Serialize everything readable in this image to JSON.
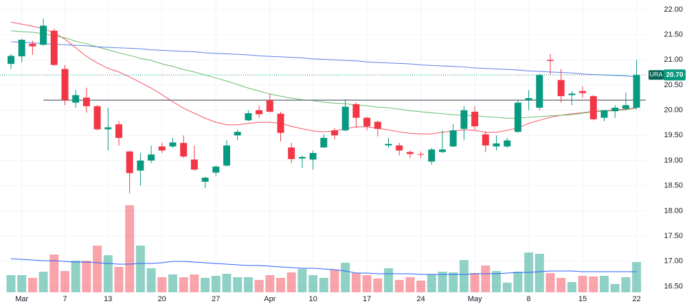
{
  "chart_data": {
    "type": "candlestick",
    "categories": [
      null,
      "Mar",
      null,
      null,
      null,
      "7",
      null,
      null,
      null,
      "13",
      null,
      null,
      null,
      null,
      "20",
      null,
      null,
      null,
      null,
      "27",
      null,
      null,
      null,
      null,
      "Apr",
      null,
      null,
      null,
      "10",
      null,
      null,
      null,
      null,
      "17",
      null,
      null,
      null,
      null,
      "24",
      null,
      null,
      null,
      null,
      "May",
      null,
      null,
      null,
      null,
      "8",
      null,
      null,
      null,
      null,
      "15",
      null,
      null,
      null,
      null,
      "22"
    ],
    "open": [
      20.92,
      21.07,
      21.32,
      21.3,
      21.58,
      20.82,
      20.15,
      20.25,
      20.08,
      19.62,
      19.72,
      19.18,
      18.8,
      19.0,
      19.28,
      19.28,
      19.35,
      19.02,
      18.58,
      18.76,
      18.9,
      19.5,
      19.8,
      20.0,
      20.2,
      19.93,
      19.26,
      19.04,
      19.02,
      19.26,
      19.6,
      19.6,
      20.12,
      19.85,
      19.77,
      19.3,
      19.3,
      19.17,
      19.13,
      18.98,
      19.17,
      19.28,
      19.63,
      19.97,
      19.52,
      19.28,
      19.28,
      19.57,
      20.2,
      20.05,
      21.0,
      20.6,
      20.3,
      20.38,
      20.28,
      19.85,
      19.98,
      20.03,
      20.05
    ],
    "high": [
      21.12,
      21.42,
      21.38,
      21.82,
      21.62,
      20.9,
      20.4,
      20.45,
      20.1,
      20.05,
      19.78,
      19.2,
      19.15,
      19.3,
      19.35,
      19.45,
      19.5,
      19.3,
      18.68,
      18.9,
      19.4,
      19.62,
      20.0,
      20.1,
      20.33,
      19.97,
      19.35,
      19.1,
      19.2,
      19.52,
      19.65,
      20.22,
      20.15,
      19.87,
      19.8,
      19.45,
      19.35,
      19.2,
      19.18,
      19.25,
      19.6,
      19.72,
      20.08,
      20.08,
      19.58,
      19.5,
      19.45,
      20.2,
      20.4,
      20.72,
      21.12,
      20.82,
      20.38,
      20.47,
      20.3,
      20.0,
      20.1,
      20.35,
      21.0
    ],
    "low": [
      20.82,
      20.95,
      21.1,
      21.28,
      20.88,
      20.1,
      20.05,
      19.95,
      19.6,
      19.2,
      19.3,
      18.35,
      18.5,
      18.95,
      19.15,
      19.25,
      19.05,
      18.8,
      18.45,
      18.7,
      18.88,
      19.4,
      19.78,
      19.85,
      19.95,
      19.38,
      18.95,
      18.85,
      18.82,
      19.25,
      19.42,
      19.58,
      19.65,
      19.6,
      19.48,
      19.25,
      19.1,
      19.05,
      19.05,
      18.92,
      19.15,
      19.27,
      19.4,
      19.6,
      19.17,
      19.2,
      19.25,
      19.55,
      20.0,
      20.0,
      20.7,
      20.15,
      20.1,
      20.25,
      19.8,
      19.78,
      19.85,
      20.0,
      20.02
    ],
    "close": [
      21.08,
      21.4,
      21.27,
      21.68,
      20.9,
      20.2,
      20.3,
      20.08,
      19.62,
      19.66,
      19.45,
      18.75,
      19.0,
      19.12,
      19.2,
      19.36,
      19.08,
      18.82,
      18.66,
      18.88,
      19.3,
      19.57,
      19.94,
      19.92,
      19.97,
      19.55,
      19.03,
      19.07,
      19.15,
      19.45,
      19.5,
      20.07,
      19.85,
      19.68,
      19.63,
      19.33,
      19.2,
      19.13,
      19.12,
      19.22,
      19.22,
      19.6,
      20.0,
      19.68,
      19.3,
      19.34,
      19.4,
      20.15,
      20.24,
      20.7,
      20.98,
      20.28,
      20.33,
      20.34,
      19.82,
      20.0,
      20.05,
      20.1,
      20.7
    ],
    "up_color": "#089981",
    "down_color": "#f23645",
    "ylim": [
      16.11,
      22.19
    ],
    "yticks": [
      {
        "value": 22,
        "label": "22.00"
      },
      {
        "value": 21.5,
        "label": "21.50"
      },
      {
        "value": 21,
        "label": "21.00"
      },
      {
        "value": 20.5,
        "label": "20.50"
      },
      {
        "value": 20,
        "label": "20.00"
      },
      {
        "value": 19.5,
        "label": "19.50"
      },
      {
        "value": 19,
        "label": "19.00"
      },
      {
        "value": 18.5,
        "label": "18.50"
      },
      {
        "value": 18,
        "label": "18.00"
      },
      {
        "value": 17.5,
        "label": "17.50"
      },
      {
        "value": 17,
        "label": "17.00"
      },
      {
        "value": 16.5,
        "label": "16.50"
      }
    ],
    "grid": true,
    "moving_averages": [
      {
        "color": "#f7525f",
        "values": [
          21.75,
          21.71,
          21.67,
          21.62,
          21.54,
          21.41,
          21.24,
          21.07,
          20.94,
          20.83,
          20.76,
          20.66,
          20.55,
          20.44,
          20.31,
          20.17,
          20.04,
          19.94,
          19.84,
          19.76,
          19.71,
          19.71,
          19.74,
          19.76,
          19.76,
          19.74,
          19.68,
          19.63,
          19.59,
          19.57,
          19.59,
          19.63,
          19.67,
          19.67,
          19.64,
          19.61,
          19.57,
          19.54,
          19.53,
          19.53,
          19.56,
          19.59,
          19.61,
          19.6,
          19.56,
          19.56,
          19.6,
          19.65,
          19.74,
          19.8,
          19.86,
          19.9,
          19.93,
          19.95,
          19.98,
          19.99,
          20.01,
          20.02,
          20.05
        ]
      },
      {
        "color": "#66bb6a",
        "values": [
          21.58,
          21.56,
          21.55,
          21.52,
          21.48,
          21.44,
          21.37,
          21.32,
          21.26,
          21.2,
          21.14,
          21.09,
          21.03,
          20.99,
          20.92,
          20.87,
          20.81,
          20.76,
          20.7,
          20.64,
          20.58,
          20.51,
          20.44,
          20.38,
          20.32,
          20.28,
          20.24,
          20.21,
          20.19,
          20.16,
          20.14,
          20.13,
          20.1,
          20.09,
          20.06,
          20.05,
          20.02,
          19.99,
          19.97,
          19.95,
          19.93,
          19.91,
          19.9,
          19.89,
          19.87,
          19.86,
          19.84,
          19.84,
          19.86,
          19.87,
          19.89,
          19.9,
          19.91,
          19.94,
          19.97,
          19.98,
          19.99,
          20.01,
          20.04
        ]
      },
      {
        "color": "#5b7ee5",
        "values": [
          21.36,
          21.35,
          21.34,
          21.32,
          21.31,
          21.3,
          21.29,
          21.28,
          21.26,
          21.25,
          21.24,
          21.23,
          21.22,
          21.2,
          21.19,
          21.18,
          21.17,
          21.16,
          21.14,
          21.13,
          21.12,
          21.11,
          21.1,
          21.08,
          21.07,
          21.06,
          21.05,
          21.04,
          21.02,
          21.01,
          21.0,
          20.99,
          20.98,
          20.96,
          20.95,
          20.94,
          20.93,
          20.92,
          20.9,
          20.89,
          20.88,
          20.87,
          20.86,
          20.84,
          20.83,
          20.82,
          20.81,
          20.8,
          20.78,
          20.77,
          20.76,
          20.75,
          20.74,
          20.72,
          20.71,
          20.7,
          20.69,
          20.68,
          20.66
        ]
      }
    ],
    "volume": {
      "values": [
        25,
        25,
        21,
        30,
        55,
        31,
        46,
        46,
        68,
        54,
        37,
        127,
        68,
        35,
        22,
        26,
        22,
        26,
        21,
        24,
        27,
        22,
        22,
        18,
        25,
        21,
        29,
        34,
        25,
        21,
        33,
        43,
        28,
        25,
        20,
        35,
        18,
        22,
        17,
        26,
        30,
        29,
        47,
        28,
        39,
        31,
        14,
        30,
        58,
        56,
        28,
        21,
        15,
        24,
        23,
        24,
        12,
        22,
        44
      ],
      "ma": {
        "color": "#2962ff",
        "values": [
          49,
          48,
          47,
          46,
          46,
          45,
          44,
          44,
          43,
          42,
          41,
          41,
          42,
          42,
          43,
          45,
          45,
          44,
          43,
          42,
          41,
          40,
          39,
          39,
          38,
          37,
          36,
          35,
          35,
          34,
          33,
          31,
          28,
          28,
          27,
          27,
          27,
          27,
          26,
          26,
          26,
          26,
          26,
          27,
          27,
          27,
          28,
          29,
          29,
          30,
          31,
          31,
          31,
          30,
          30,
          30,
          30,
          30,
          30
        ]
      }
    },
    "level_line": {
      "value": 20.2,
      "color": "#787b86"
    },
    "last_price": {
      "symbol": "URA",
      "value": 20.7,
      "label": "20.70"
    }
  }
}
